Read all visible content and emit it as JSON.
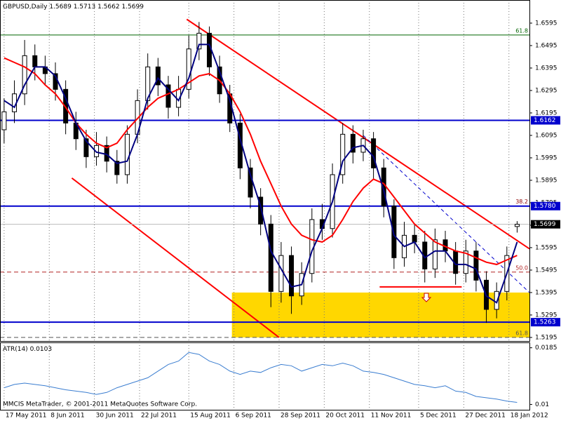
{
  "chart_data": [
    {
      "type": "candlestick",
      "title": "GBPUSD,Daily",
      "x": [
        "2011-05-17",
        "2011-05-22",
        "2011-05-27",
        "2011-06-01",
        "2011-06-06",
        "2011-06-11",
        "2011-06-16",
        "2011-06-21",
        "2011-06-26",
        "2011-07-01",
        "2011-07-06",
        "2011-07-11",
        "2011-07-16",
        "2011-07-21",
        "2011-07-26",
        "2011-07-31",
        "2011-08-05",
        "2011-08-10",
        "2011-08-15",
        "2011-08-20",
        "2011-08-25",
        "2011-08-30",
        "2011-09-04",
        "2011-09-09",
        "2011-09-14",
        "2011-09-19",
        "2011-09-24",
        "2011-09-29",
        "2011-10-04",
        "2011-10-09",
        "2011-10-14",
        "2011-10-19",
        "2011-10-24",
        "2011-10-29",
        "2011-11-03",
        "2011-11-08",
        "2011-11-13",
        "2011-11-18",
        "2011-11-23",
        "2011-11-28",
        "2011-12-03",
        "2011-12-08",
        "2011-12-13",
        "2011-12-18",
        "2011-12-23",
        "2011-12-28",
        "2012-01-02",
        "2012-01-07",
        "2012-01-12",
        "2012-01-17",
        "2012-01-22"
      ],
      "open": [
        1.612,
        1.62,
        1.628,
        1.645,
        1.64,
        1.637,
        1.63,
        1.615,
        1.608,
        1.6,
        1.605,
        1.598,
        1.592,
        1.61,
        1.625,
        1.64,
        1.632,
        1.622,
        1.63,
        1.648,
        1.655,
        1.64,
        1.628,
        1.615,
        1.595,
        1.582,
        1.57,
        1.54,
        1.556,
        1.538,
        1.548,
        1.572,
        1.568,
        1.592,
        1.61,
        1.602,
        1.608,
        1.595,
        1.578,
        1.555,
        1.565,
        1.562,
        1.55,
        1.563,
        1.558,
        1.548,
        1.558,
        1.545,
        1.532,
        1.54,
        1.5689
      ],
      "high": [
        1.626,
        1.634,
        1.652,
        1.65,
        1.645,
        1.642,
        1.634,
        1.62,
        1.612,
        1.611,
        1.609,
        1.603,
        1.614,
        1.63,
        1.646,
        1.644,
        1.636,
        1.636,
        1.654,
        1.66,
        1.658,
        1.645,
        1.632,
        1.619,
        1.599,
        1.586,
        1.574,
        1.562,
        1.56,
        1.553,
        1.577,
        1.579,
        1.597,
        1.615,
        1.614,
        1.612,
        1.611,
        1.599,
        1.581,
        1.571,
        1.57,
        1.567,
        1.568,
        1.567,
        1.562,
        1.563,
        1.562,
        1.549,
        1.544,
        1.56,
        1.5713
      ],
      "low": [
        1.606,
        1.615,
        1.623,
        1.634,
        1.632,
        1.625,
        1.61,
        1.603,
        1.595,
        1.596,
        1.593,
        1.588,
        1.588,
        1.606,
        1.621,
        1.627,
        1.617,
        1.618,
        1.626,
        1.643,
        1.636,
        1.624,
        1.611,
        1.59,
        1.577,
        1.565,
        1.533,
        1.535,
        1.53,
        1.534,
        1.544,
        1.563,
        1.564,
        1.588,
        1.597,
        1.598,
        1.59,
        1.573,
        1.55,
        1.551,
        1.557,
        1.544,
        1.546,
        1.553,
        1.543,
        1.544,
        1.54,
        1.526,
        1.528,
        1.536,
        1.5662
      ],
      "close": [
        1.62,
        1.628,
        1.645,
        1.64,
        1.637,
        1.63,
        1.615,
        1.608,
        1.6,
        1.605,
        1.598,
        1.592,
        1.61,
        1.625,
        1.64,
        1.632,
        1.622,
        1.63,
        1.648,
        1.655,
        1.64,
        1.628,
        1.615,
        1.595,
        1.582,
        1.57,
        1.54,
        1.556,
        1.538,
        1.548,
        1.572,
        1.568,
        1.592,
        1.61,
        1.602,
        1.608,
        1.595,
        1.578,
        1.555,
        1.565,
        1.562,
        1.55,
        1.563,
        1.558,
        1.548,
        1.558,
        1.545,
        1.532,
        1.54,
        1.556,
        1.5699
      ],
      "series": [
        {
          "color": "#ff0000",
          "values": [
            1.644,
            1.642,
            1.64,
            1.637,
            1.632,
            1.628,
            1.622,
            1.615,
            1.61,
            1.606,
            1.604,
            1.606,
            1.612,
            1.617,
            1.622,
            1.626,
            1.628,
            1.63,
            1.633,
            1.636,
            1.637,
            1.634,
            1.628,
            1.62,
            1.61,
            1.598,
            1.588,
            1.578,
            1.57,
            1.565,
            1.563,
            1.562,
            1.565,
            1.572,
            1.58,
            1.586,
            1.59,
            1.588,
            1.582,
            1.576,
            1.57,
            1.566,
            1.562,
            1.56,
            1.558,
            1.557,
            1.555,
            1.553,
            1.552,
            1.554,
            1.556
          ]
        },
        {
          "color": "#000080",
          "values": [
            1.625,
            1.622,
            1.632,
            1.64,
            1.64,
            1.636,
            1.626,
            1.615,
            1.607,
            1.602,
            1.601,
            1.597,
            1.598,
            1.61,
            1.626,
            1.635,
            1.63,
            1.625,
            1.635,
            1.65,
            1.65,
            1.638,
            1.625,
            1.608,
            1.592,
            1.578,
            1.558,
            1.55,
            1.542,
            1.543,
            1.558,
            1.568,
            1.58,
            1.598,
            1.604,
            1.605,
            1.6,
            1.585,
            1.565,
            1.56,
            1.562,
            1.555,
            1.558,
            1.558,
            1.552,
            1.552,
            1.55,
            1.538,
            1.535,
            1.548,
            1.562
          ]
        }
      ],
      "xlim": [
        "2011-05-15",
        "2012-01-28"
      ],
      "ylim": [
        1.5176,
        1.6698
      ],
      "xticks": [
        {
          "value": "2011-05-17",
          "label": "17 May 2011"
        },
        {
          "value": "2011-06-08",
          "label": "8 Jun 2011"
        },
        {
          "value": "2011-06-30",
          "label": "30 Jun 2011"
        },
        {
          "value": "2011-07-22",
          "label": "22 Jul 2011"
        },
        {
          "value": "2011-08-15",
          "label": "15 Aug 2011"
        },
        {
          "value": "2011-09-06",
          "label": "6 Sep 2011"
        },
        {
          "value": "2011-09-28",
          "label": "28 Sep 2011"
        },
        {
          "value": "2011-10-20",
          "label": "20 Oct 2011"
        },
        {
          "value": "2011-11-11",
          "label": "11 Nov 2011"
        },
        {
          "value": "2011-12-05",
          "label": "5 Dec 2011"
        },
        {
          "value": "2011-12-27",
          "label": "27 Dec 2011"
        },
        {
          "value": "2012-01-18",
          "label": "18 Jan 2012"
        }
      ],
      "yticks": [
        1.6595,
        1.6495,
        1.6395,
        1.6295,
        1.6195,
        1.6095,
        1.5995,
        1.5895,
        1.5795,
        1.5695,
        1.5595,
        1.5495,
        1.5395,
        1.5295,
        1.5195
      ],
      "grid": true,
      "levels": [
        {
          "value": 1.6162,
          "color": "#0000cd"
        },
        {
          "value": 1.578,
          "label": "1.5780",
          "color": "#0000cd"
        },
        {
          "value": 1.5263,
          "color": "#0000cd"
        }
      ],
      "fib_levels": [
        {
          "value": 1.6542,
          "label": "61.8",
          "color": "#006400",
          "dashed": false
        },
        {
          "value": 1.578,
          "label": "38.2",
          "color": "#8b0000",
          "dashed": true
        },
        {
          "value": 1.5486,
          "label": "50.0",
          "color": "#b22222",
          "dashed": true
        },
        {
          "value": 1.5195,
          "label": "61.8",
          "color": "#555555",
          "dashed": true
        }
      ],
      "trendlines": [
        {
          "x": [
            "2011-08-14",
            "2012-01-28"
          ],
          "y": [
            1.6612,
            1.559
          ],
          "color": "#ff0000",
          "dashed": false
        },
        {
          "x": [
            "2011-06-19",
            "2011-09-28"
          ],
          "y": [
            1.5905,
            1.5195
          ],
          "color": "#ff0000",
          "dashed": false
        },
        {
          "x": [
            "2011-11-08",
            "2012-01-28"
          ],
          "y": [
            1.6095,
            1.5395
          ],
          "color": "#0000cd",
          "dashed": true
        },
        {
          "x": [
            "2011-11-16",
            "2011-12-26"
          ],
          "y": [
            1.542,
            1.542
          ],
          "color": "#ff0000",
          "dashed": false
        }
      ],
      "zone": {
        "x": [
          "2011-09-05",
          "2012-01-28"
        ],
        "y": [
          1.5395,
          1.5195
        ],
        "color": "#ffd700"
      }
    },
    {
      "type": "line",
      "title": "ATR(14)",
      "color": "#3a7dd0",
      "x": [
        "2011-05-17",
        "2011-05-22",
        "2011-05-27",
        "2011-06-01",
        "2011-06-06",
        "2011-06-11",
        "2011-06-16",
        "2011-06-21",
        "2011-06-26",
        "2011-07-01",
        "2011-07-06",
        "2011-07-11",
        "2011-07-16",
        "2011-07-21",
        "2011-07-26",
        "2011-07-31",
        "2011-08-05",
        "2011-08-10",
        "2011-08-15",
        "2011-08-20",
        "2011-08-25",
        "2011-08-30",
        "2011-09-04",
        "2011-09-09",
        "2011-09-14",
        "2011-09-19",
        "2011-09-24",
        "2011-09-29",
        "2011-10-04",
        "2011-10-09",
        "2011-10-14",
        "2011-10-19",
        "2011-10-24",
        "2011-10-29",
        "2011-11-03",
        "2011-11-08",
        "2011-11-13",
        "2011-11-18",
        "2011-11-23",
        "2011-11-28",
        "2011-12-03",
        "2011-12-08",
        "2011-12-13",
        "2011-12-18",
        "2011-12-23",
        "2011-12-28",
        "2012-01-02",
        "2012-01-07",
        "2012-01-12",
        "2012-01-17",
        "2012-01-22"
      ],
      "values": [
        0.0125,
        0.013,
        0.0132,
        0.013,
        0.0128,
        0.0125,
        0.0122,
        0.012,
        0.0118,
        0.0115,
        0.0118,
        0.0125,
        0.013,
        0.0135,
        0.014,
        0.015,
        0.016,
        0.0165,
        0.0178,
        0.0175,
        0.0165,
        0.016,
        0.015,
        0.0145,
        0.015,
        0.0148,
        0.0155,
        0.016,
        0.0158,
        0.015,
        0.0155,
        0.016,
        0.0158,
        0.0162,
        0.0158,
        0.015,
        0.0148,
        0.0145,
        0.014,
        0.0135,
        0.013,
        0.0128,
        0.0125,
        0.0128,
        0.012,
        0.0118,
        0.0112,
        0.011,
        0.0108,
        0.0105,
        0.0103
      ],
      "xlim": [
        "2011-05-15",
        "2012-01-28"
      ],
      "ylim": [
        0.0092,
        0.0192
      ],
      "yticks": [
        0.0185,
        0.01
      ],
      "watermark": "MMCIS MetaTrader, © 2001-2011 MetaQuotes Software Corp."
    }
  ]
}
